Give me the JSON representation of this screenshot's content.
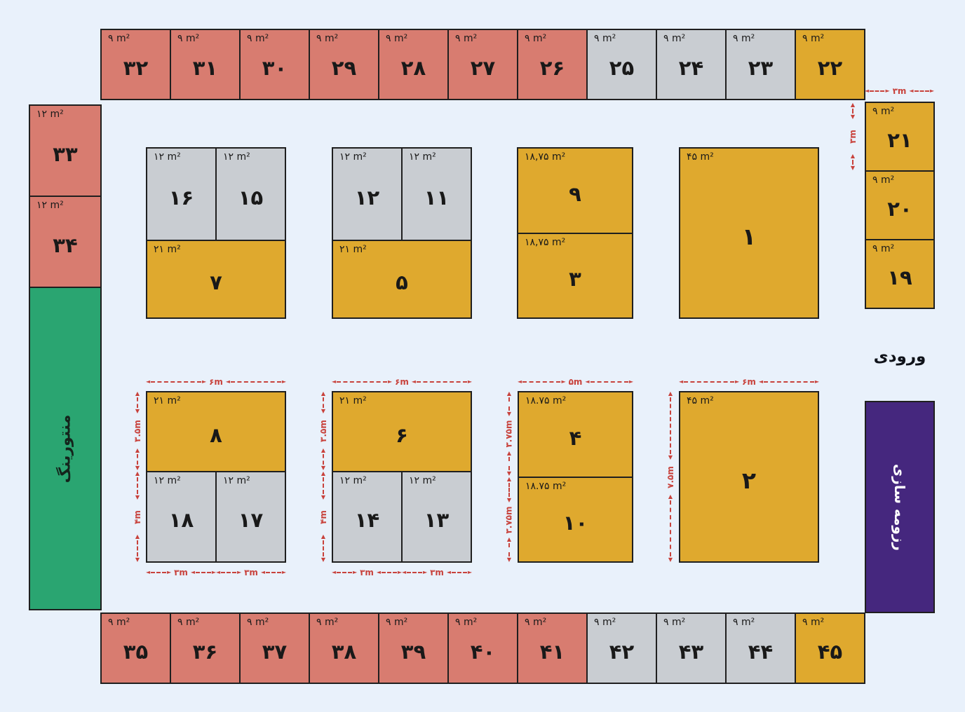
{
  "colors": {
    "red": "#d87c70",
    "gray": "#c9cdd2",
    "yellow": "#dfa92e",
    "green": "#2aa571",
    "purple": "#45277e",
    "background": "#e9f1fb",
    "dimension": "#c8423c",
    "line": "#1f1f1f"
  },
  "perimeter": {
    "top": [
      {
        "id": 32,
        "num": "۳۲",
        "area": "۹ m²",
        "color": "red"
      },
      {
        "id": 31,
        "num": "۳۱",
        "area": "۹ m²",
        "color": "red"
      },
      {
        "id": 30,
        "num": "۳۰",
        "area": "۹ m²",
        "color": "red"
      },
      {
        "id": 29,
        "num": "۲۹",
        "area": "۹ m²",
        "color": "red"
      },
      {
        "id": 28,
        "num": "۲۸",
        "area": "۹ m²",
        "color": "red"
      },
      {
        "id": 27,
        "num": "۲۷",
        "area": "۹ m²",
        "color": "red"
      },
      {
        "id": 26,
        "num": "۲۶",
        "area": "۹ m²",
        "color": "red"
      },
      {
        "id": 25,
        "num": "۲۵",
        "area": "۹ m²",
        "color": "gray"
      },
      {
        "id": 24,
        "num": "۲۴",
        "area": "۹ m²",
        "color": "gray"
      },
      {
        "id": 23,
        "num": "۲۳",
        "area": "۹ m²",
        "color": "gray"
      },
      {
        "id": 22,
        "num": "۲۲",
        "area": "۹ m²",
        "color": "yellow"
      }
    ],
    "bottom": [
      {
        "id": 35,
        "num": "۳۵",
        "area": "۹ m²",
        "color": "red"
      },
      {
        "id": 36,
        "num": "۳۶",
        "area": "۹ m²",
        "color": "red"
      },
      {
        "id": 37,
        "num": "۳۷",
        "area": "۹ m²",
        "color": "red"
      },
      {
        "id": 38,
        "num": "۳۸",
        "area": "۹ m²",
        "color": "red"
      },
      {
        "id": 39,
        "num": "۳۹",
        "area": "۹ m²",
        "color": "red"
      },
      {
        "id": 40,
        "num": "۴۰",
        "area": "۹ m²",
        "color": "red"
      },
      {
        "id": 41,
        "num": "۴۱",
        "area": "۹ m²",
        "color": "red"
      },
      {
        "id": 42,
        "num": "۴۲",
        "area": "۹ m²",
        "color": "gray"
      },
      {
        "id": 43,
        "num": "۴۳",
        "area": "۹ m²",
        "color": "gray"
      },
      {
        "id": 44,
        "num": "۴۴",
        "area": "۹ m²",
        "color": "gray"
      },
      {
        "id": 45,
        "num": "۴۵",
        "area": "۹ m²",
        "color": "yellow"
      }
    ],
    "left": [
      {
        "id": 33,
        "num": "۳۳",
        "area": "۱۲ m²",
        "color": "red"
      },
      {
        "id": 34,
        "num": "۳۴",
        "area": "۱۲ m²",
        "color": "red"
      }
    ],
    "right": [
      {
        "id": 21,
        "num": "۲۱",
        "area": "۹ m²",
        "color": "yellow"
      },
      {
        "id": 20,
        "num": "۲۰",
        "area": "۹ m²",
        "color": "yellow"
      },
      {
        "id": 19,
        "num": "۱۹",
        "area": "۹ m²",
        "color": "yellow"
      }
    ]
  },
  "islands": {
    "a": {
      "top_left": {
        "num": "۱۶",
        "area": "۱۲ m²"
      },
      "top_right": {
        "num": "۱۵",
        "area": "۱۲ m²"
      },
      "bottom": {
        "num": "۷",
        "area": "۲۱ m²"
      }
    },
    "b": {
      "top_left": {
        "num": "۱۲",
        "area": "۱۲ m²"
      },
      "top_right": {
        "num": "۱۱",
        "area": "۱۲ m²"
      },
      "bottom": {
        "num": "۵",
        "area": "۲۱ m²"
      }
    },
    "c": {
      "top": {
        "num": "۹",
        "area": "۱۸,۷۵ m²"
      },
      "bottom": {
        "num": "۳",
        "area": "۱۸,۷۵ m²"
      }
    },
    "d": {
      "num": "۱",
      "area": "۴۵ m²"
    },
    "e": {
      "top": {
        "num": "۸",
        "area": "۲۱ m²"
      },
      "bottom_left": {
        "num": "۱۸",
        "area": "۱۲ m²"
      },
      "bottom_right": {
        "num": "۱۷",
        "area": "۱۲ m²"
      }
    },
    "f": {
      "top": {
        "num": "۶",
        "area": "۲۱ m²"
      },
      "bottom_left": {
        "num": "۱۴",
        "area": "۱۲ m²"
      },
      "bottom_right": {
        "num": "۱۳",
        "area": "۱۲ m²"
      }
    },
    "g": {
      "top": {
        "num": "۴",
        "area": "۱۸.۷۵ m²"
      },
      "bottom": {
        "num": "۱۰",
        "area": "۱۸.۷۵ m²"
      }
    },
    "h": {
      "num": "۲",
      "area": "۴۵ m²"
    }
  },
  "zones": {
    "mentoring": "منتورینگ",
    "resume": "رزومه سازی",
    "entrance": "ورودی"
  },
  "dimensions": {
    "six": "۶m",
    "five": "۵m",
    "three": "۳m",
    "three_half": "۳.۵m",
    "four": "۴m",
    "three_75": "۳.۷۵m",
    "seven_half": "۷.۵m"
  }
}
